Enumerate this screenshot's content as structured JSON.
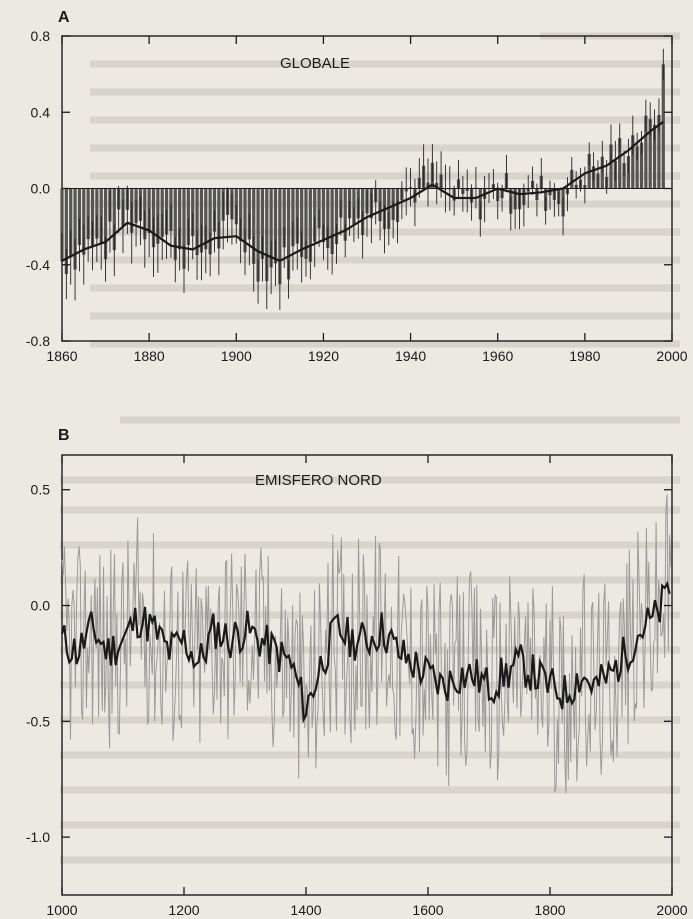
{
  "chart_data": [
    {
      "type": "line",
      "panel_label": "A",
      "title": "GLOBALE",
      "xlabel": "",
      "ylabel": "",
      "xlim": [
        1860,
        2000
      ],
      "ylim": [
        -0.8,
        0.8
      ],
      "x_ticks": [
        1860,
        1880,
        1900,
        1920,
        1940,
        1960,
        1980,
        2000
      ],
      "y_ticks": [
        -0.8,
        -0.4,
        0.0,
        0.4,
        0.8
      ],
      "y_tick_labels": [
        "-0.8",
        "-0.4",
        "0.0",
        "0.4",
        "0.8"
      ],
      "grid": false,
      "bars": {
        "description_free": true,
        "x": [
          1860,
          1865,
          1870,
          1875,
          1880,
          1885,
          1890,
          1895,
          1900,
          1905,
          1910,
          1915,
          1920,
          1925,
          1930,
          1935,
          1940,
          1945,
          1950,
          1955,
          1960,
          1965,
          1970,
          1975,
          1980,
          1985,
          1990,
          1995,
          1998
        ],
        "values": [
          -0.38,
          -0.3,
          -0.3,
          -0.15,
          -0.2,
          -0.28,
          -0.35,
          -0.28,
          -0.2,
          -0.38,
          -0.42,
          -0.3,
          -0.28,
          -0.2,
          -0.12,
          -0.12,
          0.0,
          0.05,
          -0.05,
          -0.08,
          0.0,
          -0.05,
          -0.02,
          -0.05,
          0.1,
          0.12,
          0.25,
          0.3,
          0.55
        ]
      },
      "series": [
        {
          "x": [
            1860,
            1865,
            1870,
            1875,
            1880,
            1885,
            1890,
            1895,
            1900,
            1905,
            1910,
            1915,
            1920,
            1925,
            1930,
            1935,
            1940,
            1945,
            1950,
            1955,
            1960,
            1965,
            1970,
            1975,
            1980,
            1985,
            1990,
            1995,
            1998
          ],
          "values": [
            -0.38,
            -0.32,
            -0.28,
            -0.18,
            -0.22,
            -0.3,
            -0.32,
            -0.26,
            -0.25,
            -0.33,
            -0.38,
            -0.32,
            -0.27,
            -0.22,
            -0.15,
            -0.1,
            -0.05,
            0.02,
            -0.05,
            -0.05,
            0.0,
            -0.03,
            -0.02,
            0.0,
            0.08,
            0.12,
            0.2,
            0.3,
            0.35
          ]
        }
      ]
    },
    {
      "type": "line",
      "panel_label": "B",
      "title": "EMISFERO NORD",
      "xlabel": "",
      "ylabel": "",
      "xlim": [
        1000,
        2000
      ],
      "ylim": [
        -1.25,
        0.65
      ],
      "x_ticks": [
        1000,
        1200,
        1400,
        1600,
        1800,
        2000
      ],
      "y_ticks": [
        -1.0,
        -0.5,
        0.0,
        0.5
      ],
      "y_tick_labels": [
        "-1.0",
        "-0.5",
        "0.0",
        "0.5"
      ],
      "grid": false,
      "series": [
        {
          "x": [
            1000,
            1025,
            1050,
            1075,
            1100,
            1125,
            1150,
            1175,
            1200,
            1225,
            1250,
            1275,
            1300,
            1325,
            1350,
            1375,
            1400,
            1425,
            1450,
            1475,
            1500,
            1525,
            1550,
            1575,
            1600,
            1625,
            1650,
            1675,
            1700,
            1725,
            1750,
            1775,
            1800,
            1825,
            1850,
            1875,
            1900,
            1925,
            1950,
            1975,
            2000
          ],
          "values": [
            -0.15,
            -0.2,
            -0.1,
            -0.2,
            -0.15,
            -0.05,
            -0.1,
            -0.2,
            -0.15,
            -0.25,
            -0.1,
            -0.15,
            -0.1,
            -0.15,
            -0.2,
            -0.25,
            -0.45,
            -0.25,
            -0.1,
            -0.15,
            -0.15,
            -0.1,
            -0.2,
            -0.25,
            -0.3,
            -0.35,
            -0.3,
            -0.3,
            -0.35,
            -0.3,
            -0.25,
            -0.3,
            -0.35,
            -0.38,
            -0.3,
            -0.35,
            -0.3,
            -0.2,
            -0.1,
            -0.05,
            0.1
          ]
        }
      ]
    }
  ]
}
